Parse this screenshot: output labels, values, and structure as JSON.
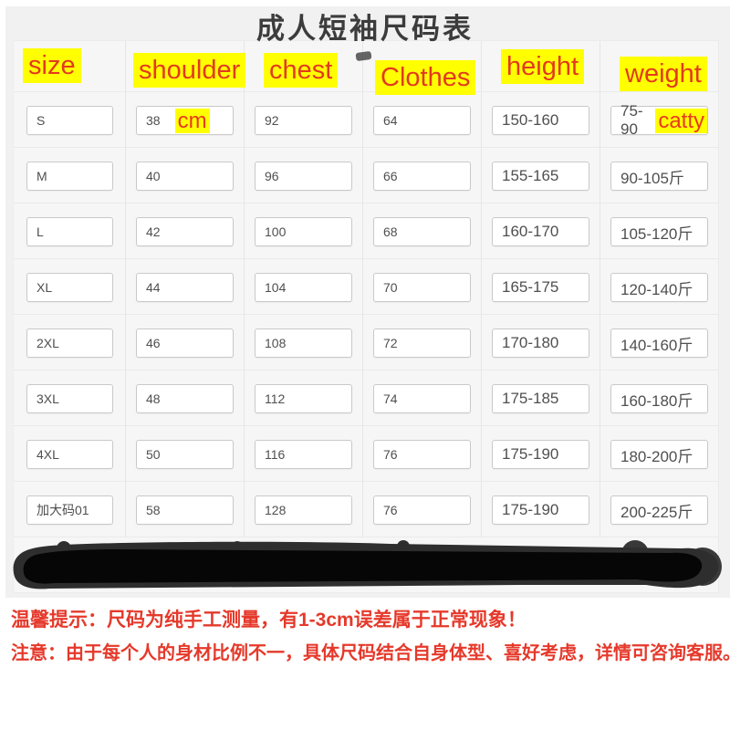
{
  "title": "成人短袖尺码表",
  "header": {
    "columns": [
      "size",
      "shoulder",
      "chest",
      "Clothes",
      "height",
      "weight"
    ]
  },
  "annotations": {
    "shoulder_unit": "cm",
    "weight_unit": "catty"
  },
  "rows": [
    {
      "size": "S",
      "shoulder": "38",
      "chest": "92",
      "clothes": "64",
      "height": "150-160",
      "weight": "75-90"
    },
    {
      "size": "M",
      "shoulder": "40",
      "chest": "96",
      "clothes": "66",
      "height": "155-165",
      "weight": "90-105斤"
    },
    {
      "size": "L",
      "shoulder": "42",
      "chest": "100",
      "clothes": "68",
      "height": "160-170",
      "weight": "105-120斤"
    },
    {
      "size": "XL",
      "shoulder": "44",
      "chest": "104",
      "clothes": "70",
      "height": "165-175",
      "weight": "120-140斤"
    },
    {
      "size": "2XL",
      "shoulder": "46",
      "chest": "108",
      "clothes": "72",
      "height": "170-180",
      "weight": "140-160斤"
    },
    {
      "size": "3XL",
      "shoulder": "48",
      "chest": "112",
      "clothes": "74",
      "height": "175-185",
      "weight": "160-180斤"
    },
    {
      "size": "4XL",
      "shoulder": "50",
      "chest": "116",
      "clothes": "76",
      "height": "175-190",
      "weight": "180-200斤"
    },
    {
      "size": "加大码01",
      "shoulder": "58",
      "chest": "128",
      "clothes": "76",
      "height": "175-190",
      "weight": "200-225斤"
    }
  ],
  "notes": {
    "line1": "温馨提示：尺码为纯手工测量，有1-3cm误差属于正常现象！",
    "line2": "注意：由于每个人的身材比例不一，具体尺码结合自身体型、喜好考虑，详情可咨询客服。"
  },
  "colors": {
    "highlight": "#ffff00",
    "header_text": "#e23a1e",
    "note_text": "#e5392b",
    "value_text": "#4f4f4f"
  }
}
